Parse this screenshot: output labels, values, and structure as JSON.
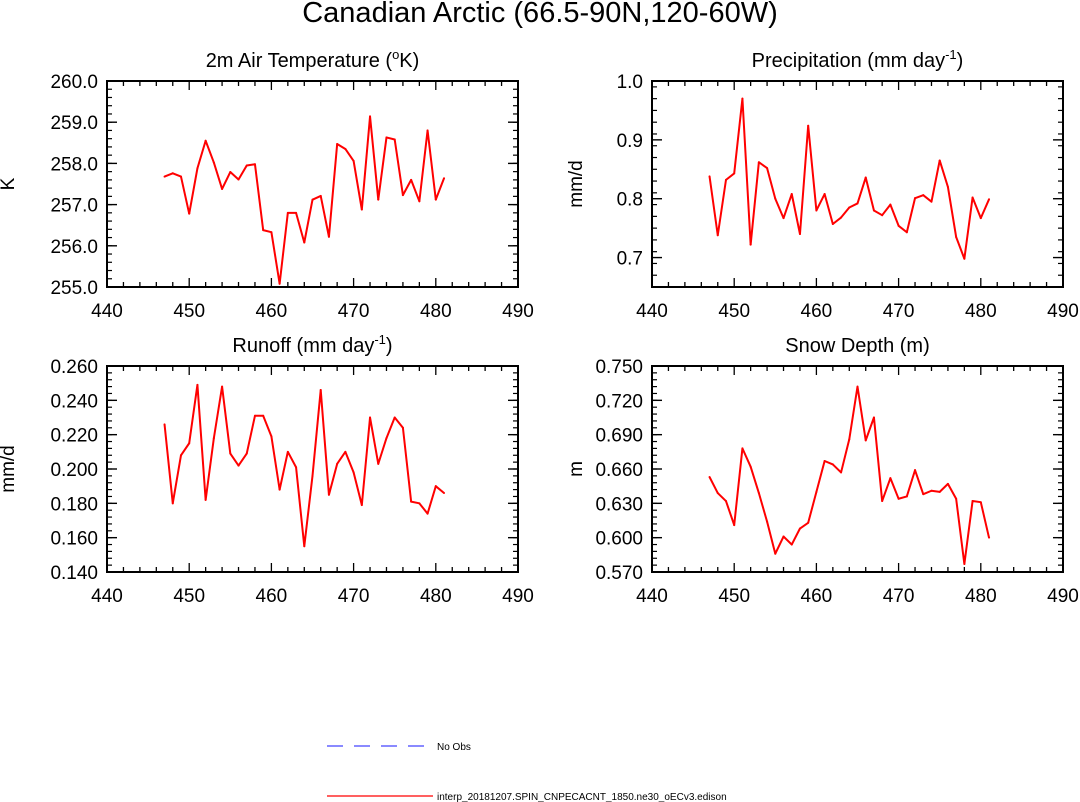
{
  "figure": {
    "title": "Canadian Arctic (66.5-90N,120-60W)"
  },
  "legend": {
    "items": [
      {
        "label": "No Obs",
        "color": "#4444ff",
        "style": "dashed"
      },
      {
        "label": "interp_20181207.SPIN_CNPECACNT_1850.ne30_oECv3.edison",
        "color": "#ff0000",
        "style": "solid"
      }
    ]
  },
  "chart_data": [
    {
      "type": "line",
      "title": "2m Air Temperature (",
      "title_sup": "o",
      "title_tail": "K)",
      "ylabel": "K",
      "xlim": [
        440,
        490
      ],
      "ylim": [
        255.0,
        260.0
      ],
      "xticks": [
        "440",
        "450",
        "460",
        "470",
        "480",
        "490"
      ],
      "yticks": [
        "255.0",
        "256.0",
        "257.0",
        "258.0",
        "259.0",
        "260.0"
      ],
      "series": [
        {
          "name": "interp_20181207.SPIN_CNPECACNT_1850.ne30_oECv3.edison",
          "color": "#ff0000",
          "x": [
            447,
            448,
            449,
            450,
            451,
            452,
            453,
            454,
            455,
            456,
            457,
            458,
            459,
            460,
            461,
            462,
            463,
            464,
            465,
            466,
            467,
            468,
            469,
            470,
            471,
            472,
            473,
            474,
            475,
            476,
            477,
            478,
            479,
            480,
            481
          ],
          "values": [
            257.68,
            257.76,
            257.68,
            256.78,
            257.88,
            258.55,
            258.02,
            257.38,
            257.79,
            257.61,
            257.95,
            257.98,
            256.38,
            256.33,
            255.08,
            256.8,
            256.8,
            256.08,
            257.12,
            257.21,
            256.22,
            258.47,
            258.35,
            258.06,
            256.88,
            259.14,
            257.12,
            258.63,
            258.58,
            257.23,
            257.6,
            257.08,
            258.8,
            257.12,
            257.64
          ]
        }
      ]
    },
    {
      "type": "line",
      "title": "Precipitation (mm day",
      "title_sup": "-1",
      "title_tail": ")",
      "ylabel": "mm/d",
      "xlim": [
        440,
        490
      ],
      "ylim": [
        0.65,
        1.0
      ],
      "xticks": [
        "440",
        "450",
        "460",
        "470",
        "480",
        "490"
      ],
      "yticks": [
        "0.7",
        "0.8",
        "0.9",
        "1.0"
      ],
      "series": [
        {
          "name": "interp_20181207.SPIN_CNPECACNT_1850.ne30_oECv3.edison",
          "color": "#ff0000",
          "x": [
            447,
            448,
            449,
            450,
            451,
            452,
            453,
            454,
            455,
            456,
            457,
            458,
            459,
            460,
            461,
            462,
            463,
            464,
            465,
            466,
            467,
            468,
            469,
            470,
            471,
            472,
            473,
            474,
            475,
            476,
            477,
            478,
            479,
            480,
            481
          ],
          "values": [
            0.838,
            0.738,
            0.832,
            0.843,
            0.97,
            0.722,
            0.862,
            0.852,
            0.8,
            0.767,
            0.808,
            0.74,
            0.924,
            0.78,
            0.808,
            0.757,
            0.768,
            0.785,
            0.792,
            0.836,
            0.78,
            0.772,
            0.79,
            0.754,
            0.743,
            0.801,
            0.806,
            0.795,
            0.865,
            0.82,
            0.735,
            0.698,
            0.802,
            0.767,
            0.799
          ]
        }
      ]
    },
    {
      "type": "line",
      "title": "Runoff (mm day",
      "title_sup": "-1",
      "title_tail": ")",
      "ylabel": "mm/d",
      "xlim": [
        440,
        490
      ],
      "ylim": [
        0.14,
        0.26
      ],
      "xticks": [
        "440",
        "450",
        "460",
        "470",
        "480",
        "490"
      ],
      "yticks": [
        "0.140",
        "0.160",
        "0.180",
        "0.200",
        "0.220",
        "0.240",
        "0.260"
      ],
      "series": [
        {
          "name": "interp_20181207.SPIN_CNPECACNT_1850.ne30_oECv3.edison",
          "color": "#ff0000",
          "x": [
            447,
            448,
            449,
            450,
            451,
            452,
            453,
            454,
            455,
            456,
            457,
            458,
            459,
            460,
            461,
            462,
            463,
            464,
            465,
            466,
            467,
            468,
            469,
            470,
            471,
            472,
            473,
            474,
            475,
            476,
            477,
            478,
            479,
            480,
            481
          ],
          "values": [
            0.226,
            0.18,
            0.208,
            0.215,
            0.249,
            0.182,
            0.218,
            0.248,
            0.209,
            0.202,
            0.209,
            0.231,
            0.231,
            0.219,
            0.188,
            0.21,
            0.201,
            0.155,
            0.196,
            0.246,
            0.185,
            0.203,
            0.21,
            0.198,
            0.179,
            0.23,
            0.203,
            0.218,
            0.23,
            0.224,
            0.181,
            0.18,
            0.174,
            0.19,
            0.186
          ]
        }
      ]
    },
    {
      "type": "line",
      "title": "Snow Depth (m)",
      "title_sup": "",
      "title_tail": "",
      "ylabel": "m",
      "xlim": [
        440,
        490
      ],
      "ylim": [
        0.57,
        0.75
      ],
      "xticks": [
        "440",
        "450",
        "460",
        "470",
        "480",
        "490"
      ],
      "yticks": [
        "0.570",
        "0.600",
        "0.630",
        "0.660",
        "0.690",
        "0.720",
        "0.750"
      ],
      "series": [
        {
          "name": "interp_20181207.SPIN_CNPECACNT_1850.ne30_oECv3.edison",
          "color": "#ff0000",
          "x": [
            447,
            448,
            449,
            450,
            451,
            452,
            453,
            454,
            455,
            456,
            457,
            458,
            459,
            460,
            461,
            462,
            463,
            464,
            465,
            466,
            467,
            468,
            469,
            470,
            471,
            472,
            473,
            474,
            475,
            476,
            477,
            478,
            479,
            480,
            481
          ],
          "values": [
            0.653,
            0.639,
            0.632,
            0.611,
            0.678,
            0.662,
            0.639,
            0.614,
            0.586,
            0.601,
            0.594,
            0.608,
            0.613,
            0.64,
            0.667,
            0.664,
            0.657,
            0.686,
            0.732,
            0.685,
            0.705,
            0.632,
            0.652,
            0.634,
            0.636,
            0.659,
            0.638,
            0.641,
            0.64,
            0.647,
            0.634,
            0.577,
            0.632,
            0.631,
            0.6
          ]
        }
      ]
    }
  ]
}
